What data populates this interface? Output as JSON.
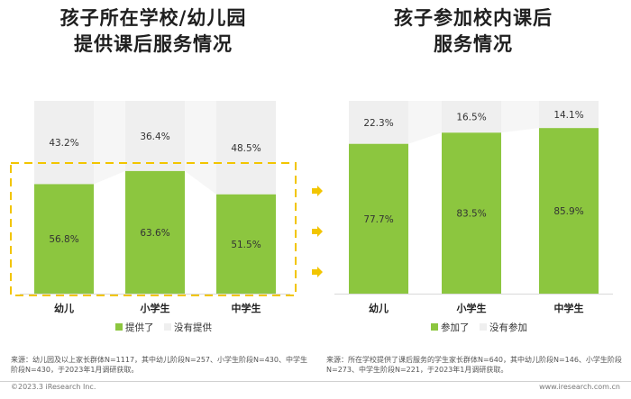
{
  "titles": {
    "left": "孩子所在学校/幼儿园\n提供课后服务情况",
    "right": "孩子参加校内课后\n服务情况"
  },
  "chart_data": [
    {
      "type": "bar",
      "stacked": true,
      "title": "孩子所在学校/幼儿园提供课后服务情况",
      "categories": [
        "幼儿",
        "小学生",
        "中学生"
      ],
      "series": [
        {
          "name": "提供了",
          "values": [
            56.8,
            63.6,
            51.5
          ],
          "labels": [
            "56.8%",
            "63.6%",
            "51.5%"
          ],
          "color": "#8cc63f"
        },
        {
          "name": "没有提供",
          "values": [
            43.2,
            36.4,
            48.5
          ],
          "labels": [
            "43.2%",
            "36.4%",
            "48.5%"
          ],
          "color": "#efefef"
        }
      ],
      "ylim": [
        0,
        100
      ],
      "legend": "bottom",
      "highlight": "dashed box around 提供了 segments"
    },
    {
      "type": "bar",
      "stacked": true,
      "title": "孩子参加校内课后服务情况",
      "categories": [
        "幼儿",
        "小学生",
        "中学生"
      ],
      "series": [
        {
          "name": "参加了",
          "values": [
            77.7,
            83.5,
            85.9
          ],
          "labels": [
            "77.7%",
            "83.5%",
            "85.9%"
          ],
          "color": "#8cc63f"
        },
        {
          "name": "没有参加",
          "values": [
            22.3,
            16.5,
            14.1
          ],
          "labels": [
            "22.3%",
            "16.5%",
            "14.1%"
          ],
          "color": "#efefef"
        }
      ],
      "ylim": [
        0,
        100
      ],
      "legend": "bottom"
    }
  ],
  "notes": {
    "left": "来源：幼儿园及以上家长群体N=1117，其中幼儿阶段N=257、小学生阶段N=430、中学生阶段N=430，于2023年1月调研获取。",
    "right": "来源：所在学校提供了课后服务的学生家长群体N=640，其中幼儿阶段N=146、小学生阶段N=273、中学生阶段N=221，于2023年1月调研获取。"
  },
  "footer": {
    "left": "©2023.3 iResearch Inc.",
    "right": "www.iresearch.com.cn"
  },
  "colors": {
    "green": "#8cc63f",
    "gray": "#efefef",
    "connector": "#f6f6f6",
    "highlight": "#f2c500"
  }
}
